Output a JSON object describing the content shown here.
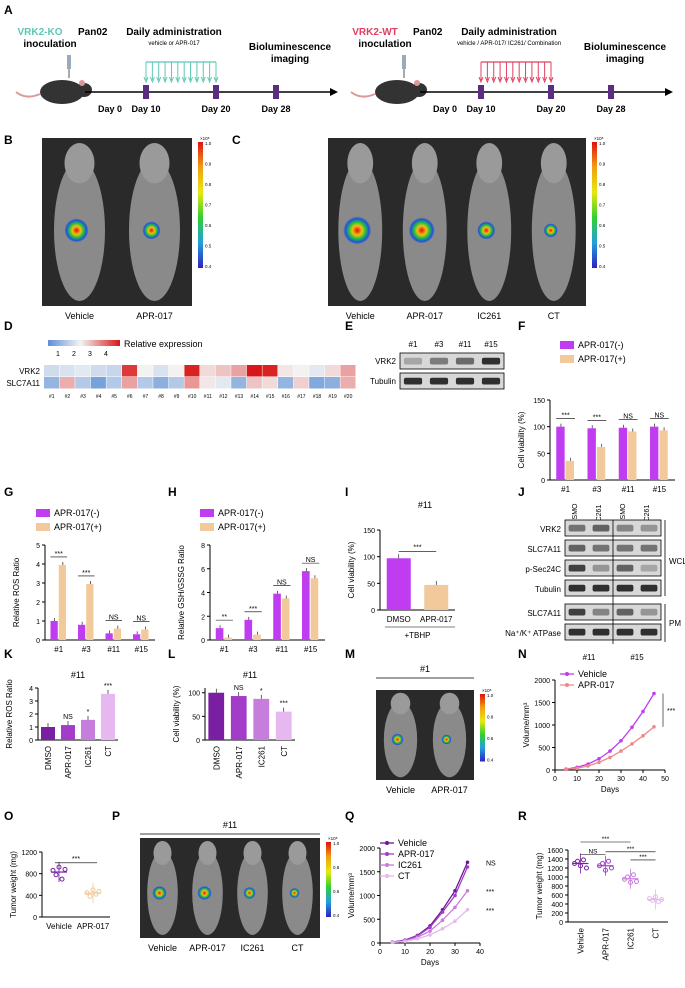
{
  "colors": {
    "minus": "#c03cf0",
    "plus": "#f2c99a",
    "dmso": "#7a1fa2",
    "apr": "#a33cc9",
    "ic261": "#c77ddb",
    "ct": "#e6b8ef",
    "vehicle": "#c03cf0",
    "apr_line": "#f08a8a"
  },
  "panel_labels": [
    "A",
    "B",
    "C",
    "D",
    "E",
    "F",
    "G",
    "H",
    "I",
    "J",
    "K",
    "L",
    "M",
    "N",
    "O",
    "P",
    "Q",
    "R"
  ],
  "A": {
    "left": {
      "title1": "VRK2-KO",
      "title2": "Pan02",
      "title3": "inoculation",
      "admin": "Daily administration",
      "sub": "vehicle or APR-017",
      "bio1": "Bioluminescence",
      "bio2": "imaging",
      "days": [
        "Day 0",
        "Day 10",
        "Day 20",
        "Day 28"
      ]
    },
    "right": {
      "title1": "VRK2-WT",
      "title2": "Pan02",
      "title3": "inoculation",
      "admin": "Daily administration",
      "sub": "vehicle / APR-017/ IC261/ Combination",
      "bio1": "Bioluminescence",
      "bio2": "imaging",
      "days": [
        "Day 0",
        "Day 10",
        "Day 20",
        "Day 28"
      ]
    }
  },
  "B": {
    "labels": [
      "Vehicle",
      "APR-017"
    ],
    "scale": {
      "unit": "×10⁸",
      "ticks": [
        "1.0",
        "0.9",
        "0.8",
        "0.7",
        "0.6",
        "0.5",
        "0.4"
      ]
    }
  },
  "C": {
    "labels": [
      "Vehicle",
      "APR-017",
      "IC261",
      "CT"
    ],
    "scale": {
      "unit": "×10⁸",
      "ticks": [
        "1.0",
        "0.9",
        "0.8",
        "0.7",
        "0.6",
        "0.5",
        "0.4"
      ]
    }
  },
  "D": {
    "legend_title": "Relative expression",
    "legend_ticks": [
      "1",
      "2",
      "3",
      "4"
    ],
    "rows": [
      "VRK2",
      "SLC7A11"
    ],
    "cols": [
      "#1",
      "#2",
      "#3",
      "#4",
      "#5",
      "#6",
      "#7",
      "#8",
      "#9",
      "#10",
      "#11",
      "#12",
      "#13",
      "#14",
      "#15",
      "#16",
      "#17",
      "#18",
      "#19",
      "#20"
    ],
    "values": [
      [
        2.2,
        2.3,
        2.4,
        2.2,
        2.1,
        4.2,
        2.6,
        2.3,
        2.6,
        4.4,
        2.8,
        3.0,
        3.3,
        4.5,
        4.4,
        2.7,
        2.6,
        2.4,
        2.8,
        3.3
      ],
      [
        1.6,
        3.2,
        1.9,
        1.3,
        1.9,
        3.3,
        1.9,
        1.5,
        1.9,
        3.4,
        2.7,
        2.4,
        1.6,
        3.0,
        2.8,
        1.6,
        2.9,
        1.4,
        1.5,
        3.2
      ]
    ]
  },
  "E": {
    "cols": [
      "#1",
      "#3",
      "#11",
      "#15"
    ],
    "rows": [
      "VRK2",
      "Tubulin"
    ]
  },
  "F": {
    "ylabel": "Cell viability (%)",
    "legend": [
      "APR-017(-)",
      "APR-017(+)"
    ],
    "categories": [
      "#1",
      "#3",
      "#11",
      "#15"
    ],
    "ylim": [
      0,
      150
    ],
    "yticks": [
      "0",
      "50",
      "100",
      "150"
    ],
    "series": [
      {
        "name": "APR-017(-)",
        "values": [
          100,
          97,
          98,
          100
        ]
      },
      {
        "name": "APR-017(+)",
        "values": [
          36,
          62,
          91,
          93
        ]
      }
    ],
    "sig": [
      "***",
      "***",
      "NS",
      "NS"
    ]
  },
  "G": {
    "ylabel": "Relative ROS Ratio",
    "legend": [
      "APR-017(-)",
      "APR-017(+)"
    ],
    "categories": [
      "#1",
      "#3",
      "#11",
      "#15"
    ],
    "ylim": [
      0,
      5
    ],
    "yticks": [
      "0",
      "1",
      "2",
      "3",
      "4",
      "5"
    ],
    "series": [
      {
        "name": "APR-017(-)",
        "values": [
          1.0,
          0.8,
          0.35,
          0.3
        ]
      },
      {
        "name": "APR-017(+)",
        "values": [
          3.95,
          2.95,
          0.6,
          0.55
        ]
      }
    ],
    "sig": [
      "***",
      "***",
      "NS",
      "NS"
    ]
  },
  "H": {
    "ylabel": "Relative GSH/GSSG Ratio",
    "legend": [
      "APR-017(-)",
      "APR-017(+)"
    ],
    "categories": [
      "#1",
      "#3",
      "#11",
      "#15"
    ],
    "ylim": [
      0,
      8
    ],
    "yticks": [
      "0",
      "2",
      "4",
      "6",
      "8"
    ],
    "series": [
      {
        "name": "APR-017(-)",
        "values": [
          1.0,
          1.7,
          3.9,
          5.8
        ]
      },
      {
        "name": "APR-017(+)",
        "values": [
          0.2,
          0.45,
          3.5,
          5.2
        ]
      }
    ],
    "sig": [
      "**",
      "***",
      "NS",
      "NS"
    ]
  },
  "I": {
    "title": "#11",
    "ylabel": "Cell viability (%)",
    "categories": [
      "DMSO",
      "APR-017"
    ],
    "values": [
      97,
      47
    ],
    "ylim": [
      0,
      150
    ],
    "yticks": [
      "0",
      "50",
      "100",
      "150"
    ],
    "sig": "***",
    "footer": "+TBHP"
  },
  "J": {
    "rows": [
      "VRK2",
      "SLC7A11",
      "p-Sec24C",
      "Tubulin",
      "SLC7A11",
      "Na⁺/K⁺ ATPase"
    ],
    "cols": [
      "DSMO",
      "IC261",
      "DSMO",
      "IC261"
    ],
    "groups": [
      "#11",
      "#15"
    ],
    "sections": [
      "WCL",
      "PM"
    ]
  },
  "K": {
    "title": "#11",
    "ylabel": "Relative ROS Ratio",
    "categories": [
      "DMSO",
      "APR-017",
      "IC261",
      "CT"
    ],
    "values": [
      1.0,
      1.15,
      1.55,
      3.55
    ],
    "ylim": [
      0,
      4
    ],
    "yticks": [
      "0",
      "1",
      "2",
      "3",
      "4"
    ],
    "sig": [
      "",
      "NS",
      "*",
      "***"
    ]
  },
  "L": {
    "title": "#11",
    "ylabel": "Cell viability (%)",
    "categories": [
      "DMSO",
      "APR-017",
      "IC261",
      "CT"
    ],
    "values": [
      100,
      93,
      87,
      60
    ],
    "ylim": [
      0,
      110
    ],
    "yticks": [
      "0",
      "50",
      "100"
    ],
    "sig": [
      "",
      "NS",
      "*",
      "***"
    ]
  },
  "M": {
    "title": "#1",
    "labels": [
      "Vehicle",
      "APR-017"
    ],
    "scale": {
      "unit": "×10⁸",
      "ticks": [
        "1.0",
        "0.8",
        "0.6",
        "0.4"
      ]
    }
  },
  "N": {
    "ylabel": "Volume/mm³",
    "xlabel": "Days",
    "legend": [
      "Vehicle",
      "APR-017"
    ],
    "ylim": [
      0,
      2000
    ],
    "yticks": [
      "0",
      "500",
      "1000",
      "1500",
      "2000"
    ],
    "xlim": [
      0,
      50
    ],
    "xticks": [
      "0",
      "10",
      "20",
      "30",
      "40",
      "50"
    ],
    "x": [
      5,
      10,
      15,
      20,
      25,
      30,
      35,
      40,
      45
    ],
    "series": [
      {
        "name": "Vehicle",
        "values": [
          20,
          60,
          130,
          250,
          420,
          650,
          950,
          1300,
          1700
        ]
      },
      {
        "name": "APR-017",
        "values": [
          15,
          40,
          90,
          170,
          280,
          420,
          580,
          760,
          960
        ]
      }
    ],
    "sig": "***"
  },
  "O": {
    "ylabel": "Tumor weight (mg)",
    "categories": [
      "Vehicle",
      "APR-017"
    ],
    "ylim": [
      0,
      1200
    ],
    "yticks": [
      "0",
      "400",
      "800",
      "1200"
    ],
    "points": [
      [
        860,
        780,
        920,
        700,
        880
      ],
      [
        450,
        380,
        500,
        420,
        470
      ]
    ],
    "means": [
      830,
      440
    ],
    "sig": "***"
  },
  "P": {
    "title": "#11",
    "labels": [
      "Vehicle",
      "APR-017",
      "IC261",
      "CT"
    ],
    "scale": {
      "unit": "×10⁸",
      "ticks": [
        "1.0",
        "0.8",
        "0.6",
        "0.4"
      ]
    }
  },
  "Q": {
    "ylabel": "Volume/mm³",
    "xlabel": "Days",
    "legend": [
      "Vehicle",
      "APR-017",
      "IC261",
      "CT"
    ],
    "ylim": [
      0,
      2000
    ],
    "yticks": [
      "0",
      "500",
      "1000",
      "1500",
      "2000"
    ],
    "xlim": [
      0,
      40
    ],
    "xticks": [
      "0",
      "10",
      "20",
      "30",
      "40"
    ],
    "x": [
      5,
      10,
      15,
      20,
      25,
      30,
      35
    ],
    "series": [
      {
        "name": "Vehicle",
        "values": [
          20,
          60,
          160,
          360,
          700,
          1100,
          1700
        ]
      },
      {
        "name": "APR-017",
        "values": [
          18,
          55,
          150,
          330,
          650,
          1000,
          1600
        ]
      },
      {
        "name": "IC261",
        "values": [
          15,
          45,
          120,
          250,
          480,
          750,
          1100
        ]
      },
      {
        "name": "CT",
        "values": [
          12,
          35,
          90,
          170,
          300,
          460,
          700
        ]
      }
    ],
    "sig": [
      "NS",
      "***",
      "***"
    ]
  },
  "R": {
    "ylabel": "Tumor weight (mg)",
    "categories": [
      "Vehicle",
      "APR-017",
      "IC261",
      "CT"
    ],
    "ylim": [
      0,
      1600
    ],
    "yticks": [
      "0",
      "200",
      "400",
      "600",
      "800",
      "1000",
      "1200",
      "1400",
      "1600"
    ],
    "points": [
      [
        1300,
        1350,
        1250,
        1380,
        1200
      ],
      [
        1250,
        1300,
        1150,
        1350,
        1200
      ],
      [
        950,
        1000,
        880,
        1050,
        900
      ],
      [
        520,
        480,
        560,
        450,
        500
      ]
    ],
    "means": [
      1300,
      1250,
      960,
      500
    ],
    "sig": [
      "NS",
      "***",
      "***",
      "***"
    ]
  }
}
